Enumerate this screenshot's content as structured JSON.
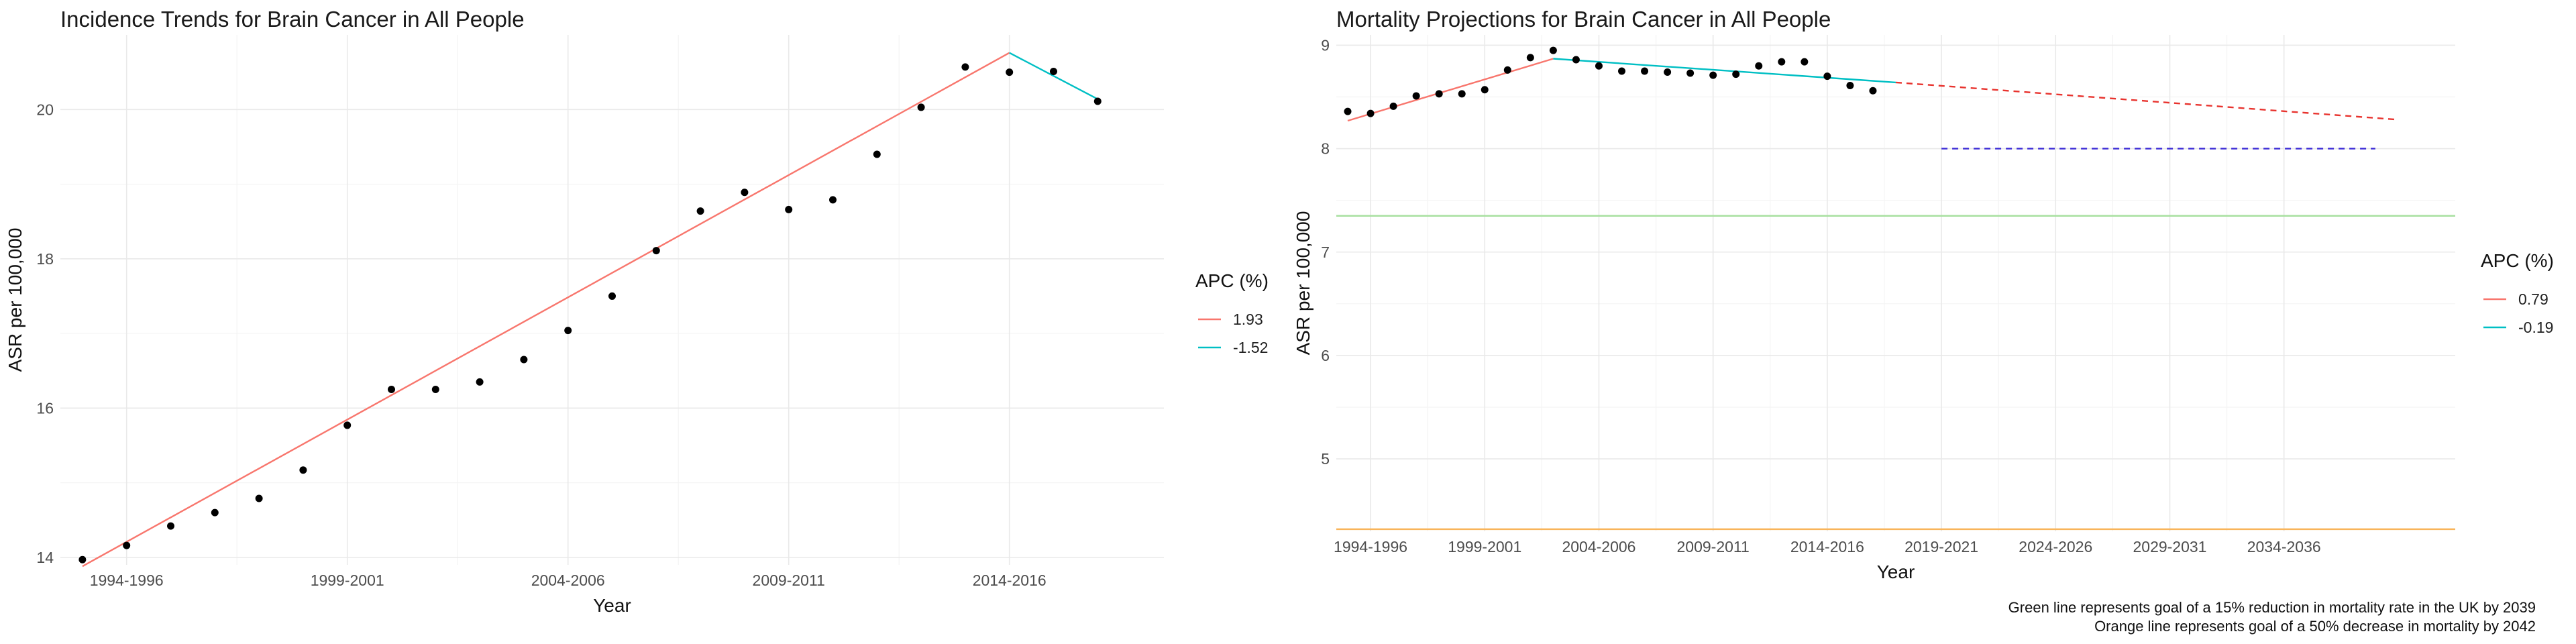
{
  "chart_data": [
    {
      "type": "line",
      "title": "Incidence Trends for Brain Cancer in All People",
      "xlabel": "Year",
      "ylabel": "ASR per 100,000",
      "xlim": [
        0.5,
        25.5
      ],
      "ylim": [
        13.9,
        21.0
      ],
      "x_ticks": [
        {
          "x": 2,
          "label": "1994-1996"
        },
        {
          "x": 7,
          "label": "1999-2001"
        },
        {
          "x": 12,
          "label": "2004-2006"
        },
        {
          "x": 17,
          "label": "2009-2011"
        },
        {
          "x": 22,
          "label": "2014-2016"
        }
      ],
      "y_ticks": [
        14,
        16,
        18,
        20
      ],
      "grid": true,
      "legend": {
        "title": "APC (%)",
        "position": "right",
        "entries": [
          {
            "label": "1.93",
            "color": "#F8766D"
          },
          {
            "label": "-1.52",
            "color": "#00BFC4"
          }
        ]
      },
      "points": {
        "x": [
          1,
          2,
          3,
          4,
          5,
          6,
          7,
          8,
          9,
          10,
          11,
          12,
          13,
          14,
          15,
          16,
          17,
          18,
          19,
          20,
          21,
          22,
          23,
          24
        ],
        "y": [
          13.97,
          14.16,
          14.42,
          14.6,
          14.79,
          15.17,
          15.77,
          16.25,
          16.25,
          16.35,
          16.65,
          17.04,
          17.5,
          18.11,
          18.64,
          18.89,
          18.66,
          18.79,
          19.4,
          20.03,
          20.57,
          20.5,
          20.51,
          20.11
        ]
      },
      "series": [
        {
          "name": "1.93",
          "color": "#F8766D",
          "x": [
            1,
            22
          ],
          "y": [
            13.88,
            20.76
          ]
        },
        {
          "name": "-1.52",
          "color": "#00BFC4",
          "x": [
            22,
            24
          ],
          "y": [
            20.76,
            20.14
          ]
        }
      ]
    },
    {
      "type": "line",
      "title": "Mortality Projections for Brain Cancer in All People",
      "xlabel": "Year",
      "ylabel": "ASR per 100,000",
      "xlim": [
        0.5,
        49.5
      ],
      "ylim": [
        4.3,
        9.1
      ],
      "x_ticks": [
        {
          "x": 2,
          "label": "1994-1996"
        },
        {
          "x": 7,
          "label": "1999-2001"
        },
        {
          "x": 12,
          "label": "2004-2006"
        },
        {
          "x": 17,
          "label": "2009-2011"
        },
        {
          "x": 22,
          "label": "2014-2016"
        },
        {
          "x": 27,
          "label": "2019-2021"
        },
        {
          "x": 32,
          "label": "2024-2026"
        },
        {
          "x": 37,
          "label": "2029-2031"
        },
        {
          "x": 42,
          "label": "2034-2036"
        }
      ],
      "y_ticks": [
        5,
        6,
        7,
        8,
        9
      ],
      "grid": true,
      "legend": {
        "title": "APC (%)",
        "position": "right",
        "entries": [
          {
            "label": "0.79",
            "color": "#F8766D"
          },
          {
            "label": "-0.19",
            "color": "#00BFC4"
          }
        ]
      },
      "points": {
        "x": [
          1,
          2,
          3,
          4,
          5,
          6,
          7,
          8,
          9,
          10,
          11,
          12,
          13,
          14,
          15,
          16,
          17,
          18,
          19,
          20,
          21,
          22,
          23,
          24
        ],
        "y": [
          8.36,
          8.34,
          8.41,
          8.51,
          8.53,
          8.53,
          8.57,
          8.76,
          8.88,
          8.95,
          8.86,
          8.8,
          8.75,
          8.75,
          8.74,
          8.73,
          8.71,
          8.72,
          8.8,
          8.84,
          8.84,
          8.7,
          8.61,
          8.56
        ]
      },
      "series": [
        {
          "name": "0.79",
          "color": "#F8766D",
          "x": [
            1,
            10
          ],
          "y": [
            8.27,
            8.87
          ]
        },
        {
          "name": "-0.19",
          "color": "#00BFC4",
          "x": [
            10,
            25
          ],
          "y": [
            8.87,
            8.64
          ]
        },
        {
          "name": "",
          "color": "#E8332E",
          "dashed": true,
          "x": [
            25,
            47
          ],
          "y": [
            8.64,
            8.28
          ]
        },
        {
          "name": "",
          "color": "#3B2BD6",
          "dashed": true,
          "x": [
            27,
            46
          ],
          "y": [
            8.0,
            8.0
          ]
        }
      ],
      "hlines": [
        {
          "color": "#A8E0A0",
          "y": 7.35
        },
        {
          "color": "#F9B45A",
          "y": 4.32
        }
      ],
      "footer": [
        "Green line represents goal of a 15% reduction in mortality rate in the UK by 2039",
        "Orange line represents goal of a 50% decrease in mortality by 2042"
      ]
    }
  ]
}
